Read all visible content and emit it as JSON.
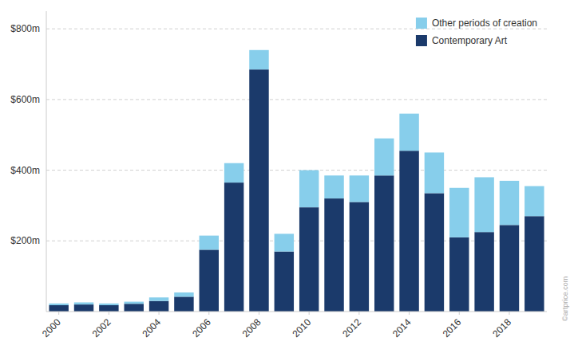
{
  "chart_data": {
    "type": "bar",
    "stacked": true,
    "categories": [
      "2000",
      null,
      "2002",
      null,
      "2004",
      null,
      "2006",
      null,
      "2008",
      null,
      "2010",
      null,
      "2012",
      null,
      "2014",
      null,
      "2016",
      null,
      "2018",
      null
    ],
    "series": [
      {
        "name": "Contemporary Art",
        "color": "#1b3a6b",
        "values": [
          18,
          20,
          18,
          22,
          30,
          42,
          175,
          365,
          685,
          170,
          295,
          320,
          310,
          385,
          455,
          335,
          210,
          225,
          245,
          270
        ]
      },
      {
        "name": "Other periods of creation",
        "color": "#87ceeb",
        "values": [
          5,
          6,
          5,
          6,
          10,
          12,
          40,
          55,
          55,
          50,
          105,
          65,
          75,
          105,
          105,
          115,
          140,
          155,
          125,
          85
        ]
      }
    ],
    "ylim": [
      0,
      850
    ],
    "yticks": [
      {
        "value": 200,
        "label": "$200m"
      },
      {
        "value": 400,
        "label": "$400m"
      },
      {
        "value": 600,
        "label": "$600m"
      },
      {
        "value": 800,
        "label": "$800m"
      }
    ],
    "grid": true,
    "legend": "upper right",
    "annotations": [
      "©artprice.com"
    ]
  }
}
